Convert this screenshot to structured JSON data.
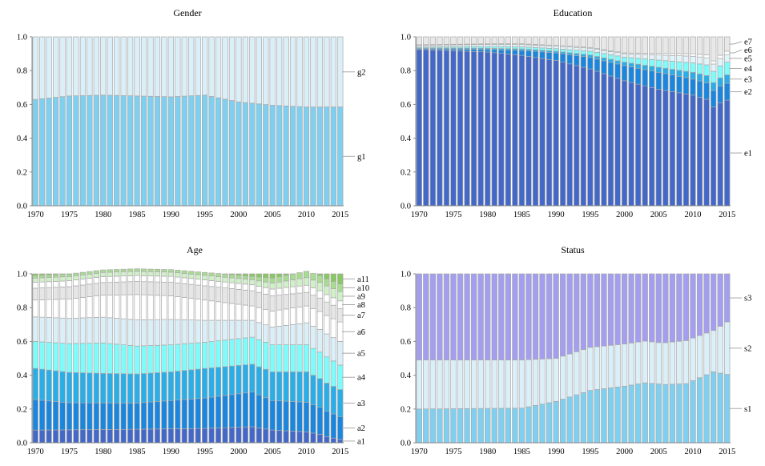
{
  "chart_data": [
    {
      "type": "bar",
      "stacked": true,
      "title": "Gender",
      "x": [
        1970,
        2015
      ],
      "xticks": [
        1970,
        1975,
        1980,
        1985,
        1990,
        1995,
        2000,
        2005,
        2010,
        2015
      ],
      "ylim": [
        0,
        1
      ],
      "yticks": [
        "0.0",
        "0.2",
        "0.4",
        "0.6",
        "0.8",
        "1.0"
      ],
      "series": [
        {
          "name": "g1",
          "color": "#7fd0f0",
          "knots": [
            [
              1970,
              0.63
            ],
            [
              1975,
              0.65
            ],
            [
              1980,
              0.655
            ],
            [
              1985,
              0.65
            ],
            [
              1990,
              0.645
            ],
            [
              1995,
              0.655
            ],
            [
              2000,
              0.615
            ],
            [
              2005,
              0.595
            ],
            [
              2010,
              0.585
            ],
            [
              2015,
              0.585
            ]
          ]
        },
        {
          "name": "g2",
          "color": "#dbeff8",
          "knots": [
            [
              1970,
              0.37
            ],
            [
              2015,
              0.415
            ]
          ],
          "remainder": true
        }
      ]
    },
    {
      "type": "bar",
      "stacked": true,
      "title": "Education",
      "x": [
        1970,
        2015
      ],
      "xticks": [
        1970,
        1975,
        1980,
        1985,
        1990,
        1995,
        2000,
        2005,
        2010,
        2015
      ],
      "ylim": [
        0,
        1
      ],
      "yticks": [
        "0.0",
        "0.2",
        "0.4",
        "0.6",
        "0.8",
        "1.0"
      ],
      "series": [
        {
          "name": "e1",
          "color": "#4468c8",
          "knots": [
            [
              1970,
              0.925
            ],
            [
              1980,
              0.91
            ],
            [
              1985,
              0.89
            ],
            [
              1990,
              0.86
            ],
            [
              1995,
              0.81
            ],
            [
              2000,
              0.74
            ],
            [
              2005,
              0.69
            ],
            [
              2010,
              0.655
            ],
            [
              2012,
              0.63
            ],
            [
              2013,
              0.585
            ],
            [
              2014,
              0.61
            ],
            [
              2015,
              0.625
            ]
          ]
        },
        {
          "name": "e2",
          "color": "#1a86de",
          "knots": [
            [
              1970,
              0.005
            ],
            [
              1980,
              0.015
            ],
            [
              1990,
              0.045
            ],
            [
              2000,
              0.09
            ],
            [
              2005,
              0.1
            ],
            [
              2010,
              0.095
            ],
            [
              2015,
              0.1
            ]
          ]
        },
        {
          "name": "e3",
          "color": "#2aaee8",
          "knots": [
            [
              1970,
              0.005
            ],
            [
              1990,
              0.01
            ],
            [
              2000,
              0.02
            ],
            [
              2010,
              0.04
            ],
            [
              2015,
              0.05
            ]
          ]
        },
        {
          "name": "e4",
          "color": "#7efcfc",
          "knots": [
            [
              1970,
              0.005
            ],
            [
              1990,
              0.015
            ],
            [
              2000,
              0.03
            ],
            [
              2010,
              0.055
            ],
            [
              2015,
              0.075
            ]
          ]
        },
        {
          "name": "e5",
          "color": "#e2f3fa",
          "knots": [
            [
              1970,
              0.01
            ],
            [
              1990,
              0.015
            ],
            [
              2000,
              0.02
            ],
            [
              2010,
              0.04
            ],
            [
              2015,
              0.045
            ]
          ]
        },
        {
          "name": "e6",
          "color": "#ffffff",
          "knots": [
            [
              1970,
              0.003
            ],
            [
              2000,
              0.005
            ],
            [
              2010,
              0.015
            ],
            [
              2015,
              0.02
            ]
          ]
        },
        {
          "name": "e7",
          "color": "#e8e8e8",
          "knots": [
            [
              1970,
              0.05
            ],
            [
              2015,
              0.085
            ]
          ],
          "remainder": true
        }
      ]
    },
    {
      "type": "bar",
      "stacked": true,
      "title": "Age",
      "x": [
        1970,
        2015
      ],
      "xticks": [
        1970,
        1975,
        1980,
        1985,
        1990,
        1995,
        2000,
        2005,
        2010,
        2015
      ],
      "ylim": [
        0,
        1
      ],
      "yticks": [
        "0.0",
        "0.2",
        "0.4",
        "0.6",
        "0.8",
        "1.0"
      ],
      "series": [
        {
          "name": "a1",
          "color": "#4468c8",
          "knots": [
            [
              1970,
              0.075
            ],
            [
              1985,
              0.08
            ],
            [
              1995,
              0.085
            ],
            [
              2002,
              0.095
            ],
            [
              2005,
              0.075
            ],
            [
              2010,
              0.065
            ],
            [
              2012,
              0.05
            ],
            [
              2013,
              0.035
            ],
            [
              2015,
              0.02
            ]
          ]
        },
        {
          "name": "a2",
          "color": "#1a86de",
          "knots": [
            [
              1970,
              0.18
            ],
            [
              1975,
              0.16
            ],
            [
              1985,
              0.155
            ],
            [
              1995,
              0.18
            ],
            [
              2002,
              0.205
            ],
            [
              2005,
              0.175
            ],
            [
              2010,
              0.175
            ],
            [
              2012,
              0.16
            ],
            [
              2015,
              0.135
            ]
          ]
        },
        {
          "name": "a3",
          "color": "#2aaee8",
          "knots": [
            [
              1970,
              0.185
            ],
            [
              1980,
              0.175
            ],
            [
              1990,
              0.17
            ],
            [
              1995,
              0.175
            ],
            [
              2002,
              0.165
            ],
            [
              2005,
              0.17
            ],
            [
              2010,
              0.18
            ],
            [
              2012,
              0.17
            ],
            [
              2015,
              0.16
            ]
          ]
        },
        {
          "name": "a4",
          "color": "#7efcfc",
          "knots": [
            [
              1970,
              0.16
            ],
            [
              1980,
              0.18
            ],
            [
              1985,
              0.165
            ],
            [
              1990,
              0.16
            ],
            [
              1995,
              0.155
            ],
            [
              2002,
              0.16
            ],
            [
              2005,
              0.16
            ],
            [
              2010,
              0.16
            ],
            [
              2013,
              0.155
            ],
            [
              2015,
              0.145
            ]
          ]
        },
        {
          "name": "a5",
          "color": "#dbeff8",
          "knots": [
            [
              1970,
              0.145
            ],
            [
              1975,
              0.15
            ],
            [
              1985,
              0.155
            ],
            [
              1990,
              0.15
            ],
            [
              1995,
              0.13
            ],
            [
              2002,
              0.1
            ],
            [
              2005,
              0.105
            ],
            [
              2010,
              0.13
            ],
            [
              2015,
              0.14
            ]
          ]
        },
        {
          "name": "a6",
          "color": "#ffffff",
          "knots": [
            [
              1970,
              0.1
            ],
            [
              1980,
              0.13
            ],
            [
              1985,
              0.15
            ],
            [
              1990,
              0.14
            ],
            [
              1995,
              0.12
            ],
            [
              2002,
              0.085
            ],
            [
              2005,
              0.095
            ],
            [
              2010,
              0.1
            ],
            [
              2015,
              0.115
            ]
          ]
        },
        {
          "name": "a7",
          "color": "#e6e6e6",
          "knots": [
            [
              1970,
              0.07
            ],
            [
              1980,
              0.075
            ],
            [
              1990,
              0.08
            ],
            [
              2002,
              0.09
            ],
            [
              2005,
              0.09
            ],
            [
              2010,
              0.08
            ],
            [
              2015,
              0.08
            ]
          ]
        },
        {
          "name": "a8",
          "color": "#ffffff",
          "knots": [
            [
              1970,
              0.035
            ],
            [
              1990,
              0.035
            ],
            [
              2002,
              0.035
            ],
            [
              2005,
              0.04
            ],
            [
              2015,
              0.045
            ]
          ]
        },
        {
          "name": "a9",
          "color": "#d0f0c8",
          "knots": [
            [
              1970,
              0.025
            ],
            [
              1990,
              0.025
            ],
            [
              2002,
              0.03
            ],
            [
              2005,
              0.035
            ],
            [
              2015,
              0.055
            ]
          ]
        },
        {
          "name": "a10",
          "color": "#a8dc90",
          "knots": [
            [
              1970,
              0.015
            ],
            [
              1990,
              0.015
            ],
            [
              2002,
              0.02
            ],
            [
              2005,
              0.03
            ],
            [
              2015,
              0.045
            ]
          ]
        },
        {
          "name": "a11",
          "color": "#88c860",
          "knots": [
            [
              1970,
              0.01
            ],
            [
              2015,
              0.06
            ]
          ],
          "remainder": true
        }
      ]
    },
    {
      "type": "bar",
      "stacked": true,
      "title": "Status",
      "x": [
        1970,
        2015
      ],
      "xticks": [
        1970,
        1975,
        1980,
        1985,
        1990,
        1995,
        2000,
        2005,
        2010,
        2015
      ],
      "ylim": [
        0,
        1
      ],
      "yticks": [
        "0.0",
        "0.2",
        "0.4",
        "0.6",
        "0.8",
        "1.0"
      ],
      "series": [
        {
          "name": "s1",
          "color": "#7fd0f0",
          "knots": [
            [
              1970,
              0.2
            ],
            [
              1985,
              0.205
            ],
            [
              1990,
              0.245
            ],
            [
              1995,
              0.31
            ],
            [
              2000,
              0.335
            ],
            [
              2003,
              0.355
            ],
            [
              2006,
              0.345
            ],
            [
              2009,
              0.35
            ],
            [
              2013,
              0.42
            ],
            [
              2015,
              0.405
            ]
          ]
        },
        {
          "name": "s2",
          "color": "#dbeff8",
          "knots": [
            [
              1970,
              0.29
            ],
            [
              1985,
              0.285
            ],
            [
              1990,
              0.255
            ],
            [
              1995,
              0.255
            ],
            [
              2000,
              0.25
            ],
            [
              2005,
              0.245
            ],
            [
              2009,
              0.255
            ],
            [
              2013,
              0.245
            ],
            [
              2015,
              0.31
            ]
          ]
        },
        {
          "name": "s3",
          "color": "#a39ef0",
          "knots": [
            [
              1970,
              0.51
            ],
            [
              2015,
              0.285
            ]
          ],
          "remainder": true
        }
      ]
    }
  ]
}
